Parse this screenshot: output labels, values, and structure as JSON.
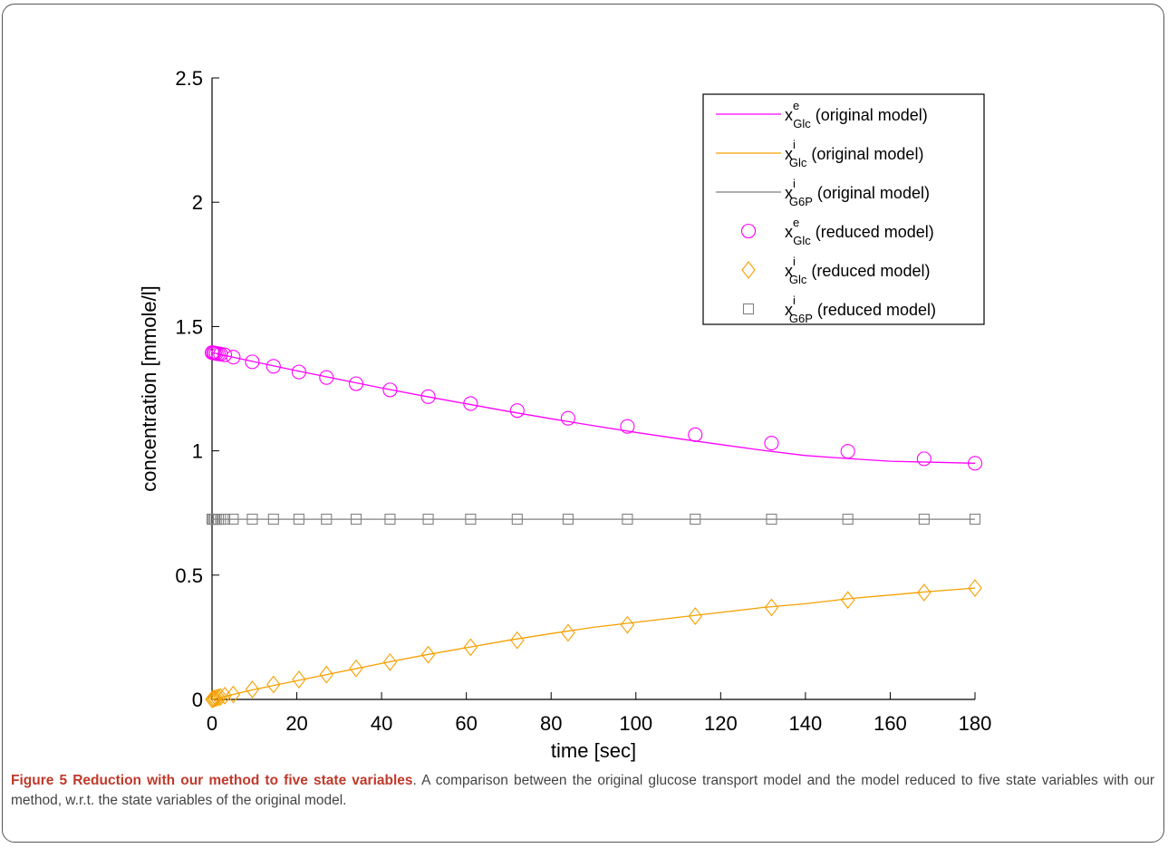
{
  "caption": {
    "label": "Figure 5",
    "title": "Reduction with our method to five state variables",
    "text": ". A comparison between the original glucose transport model and the model reduced to five state variables with our method, w.r.t. the state variables of the original model."
  },
  "chart_data": {
    "type": "line",
    "title": "",
    "xlabel": "time [sec]",
    "ylabel": "concentration [mmole/l]",
    "xlim": [
      0,
      180
    ],
    "ylim": [
      0,
      2.5
    ],
    "xticks": [
      0,
      20,
      40,
      60,
      80,
      100,
      120,
      140,
      160,
      180
    ],
    "yticks": [
      0,
      0.5,
      1,
      1.5,
      2,
      2.5
    ],
    "xtick_labels": [
      "0",
      "20",
      "40",
      "60",
      "80",
      "100",
      "120",
      "140",
      "160",
      "180"
    ],
    "ytick_labels": [
      "0",
      "0.5",
      "1",
      "1.5",
      "2",
      "2.5"
    ],
    "grid": false,
    "legend_position": "top-right",
    "legend": [
      {
        "sym": "x",
        "sup": "e",
        "sub": "Glc",
        "text": "(original model)",
        "kind": "line",
        "color": "#ff00ff",
        "marker": "none"
      },
      {
        "sym": "x",
        "sup": "i",
        "sub": "Glc",
        "text": "(original model)",
        "kind": "line",
        "color": "#f5a000",
        "marker": "none"
      },
      {
        "sym": "x",
        "sup": "i",
        "sub": "G6P",
        "text": "(original model)",
        "kind": "line",
        "color": "#808080",
        "marker": "none"
      },
      {
        "sym": "x",
        "sup": "e",
        "sub": "Glc",
        "text": "(reduced model)",
        "kind": "marker",
        "color": "#ff00ff",
        "marker": "circle"
      },
      {
        "sym": "x",
        "sup": "i",
        "sub": "Glc",
        "text": "(reduced model)",
        "kind": "marker",
        "color": "#f5a000",
        "marker": "diamond"
      },
      {
        "sym": "x",
        "sup": "i",
        "sub": "G6P",
        "text": "(reduced model)",
        "kind": "marker",
        "color": "#808080",
        "marker": "square"
      }
    ],
    "line_series": [
      {
        "color": "#ff00ff",
        "x": [
          0,
          10,
          20,
          30,
          40,
          50,
          60,
          70,
          80,
          90,
          100,
          110,
          120,
          130,
          140,
          150,
          160,
          170,
          180
        ],
        "y": [
          1.395,
          1.358,
          1.322,
          1.287,
          1.253,
          1.22,
          1.189,
          1.158,
          1.129,
          1.101,
          1.074,
          1.049,
          1.025,
          1.002,
          0.981,
          0.969,
          0.958,
          0.954,
          0.95
        ]
      },
      {
        "color": "#f5a000",
        "x": [
          0,
          10,
          20,
          30,
          40,
          50,
          60,
          70,
          80,
          90,
          100,
          110,
          120,
          130,
          140,
          150,
          160,
          170,
          180
        ],
        "y": [
          0.0,
          0.04,
          0.075,
          0.11,
          0.145,
          0.178,
          0.208,
          0.238,
          0.265,
          0.29,
          0.31,
          0.33,
          0.35,
          0.37,
          0.385,
          0.405,
          0.42,
          0.435,
          0.448
        ]
      },
      {
        "color": "#808080",
        "x": [
          0,
          180
        ],
        "y": [
          0.725,
          0.725
        ]
      }
    ],
    "marker_series": [
      {
        "marker": "circle",
        "color": "#ff00ff",
        "x": [
          0,
          0.3,
          0.6,
          1,
          1.5,
          2,
          3,
          5,
          9.5,
          14.5,
          20.5,
          27,
          34,
          42,
          51,
          61,
          72,
          84,
          98,
          114,
          132,
          150,
          168,
          180
        ],
        "y": [
          1.395,
          1.394,
          1.393,
          1.392,
          1.39,
          1.389,
          1.386,
          1.377,
          1.358,
          1.34,
          1.317,
          1.295,
          1.27,
          1.245,
          1.218,
          1.19,
          1.162,
          1.131,
          1.098,
          1.065,
          1.031,
          0.998,
          0.968,
          0.95
        ]
      },
      {
        "marker": "diamond",
        "color": "#f5a000",
        "x": [
          0,
          0.3,
          0.6,
          1,
          1.5,
          2,
          3,
          5,
          9.5,
          14.5,
          20.5,
          27,
          34,
          42,
          51,
          61,
          72,
          84,
          98,
          114,
          132,
          150,
          168,
          180
        ],
        "y": [
          0.0,
          0.002,
          0.004,
          0.006,
          0.008,
          0.01,
          0.015,
          0.02,
          0.04,
          0.06,
          0.08,
          0.1,
          0.125,
          0.15,
          0.18,
          0.21,
          0.238,
          0.268,
          0.3,
          0.335,
          0.37,
          0.4,
          0.43,
          0.448
        ]
      },
      {
        "marker": "square",
        "color": "#808080",
        "x": [
          0,
          0.3,
          0.6,
          1,
          1.5,
          2,
          3,
          5,
          9.5,
          14.5,
          20.5,
          27,
          34,
          42,
          51,
          61,
          72,
          84,
          98,
          114,
          132,
          150,
          168,
          180
        ],
        "y": [
          0.725,
          0.725,
          0.725,
          0.725,
          0.725,
          0.725,
          0.725,
          0.725,
          0.725,
          0.725,
          0.725,
          0.725,
          0.725,
          0.725,
          0.725,
          0.725,
          0.725,
          0.725,
          0.725,
          0.725,
          0.725,
          0.725,
          0.725,
          0.725
        ]
      }
    ]
  }
}
